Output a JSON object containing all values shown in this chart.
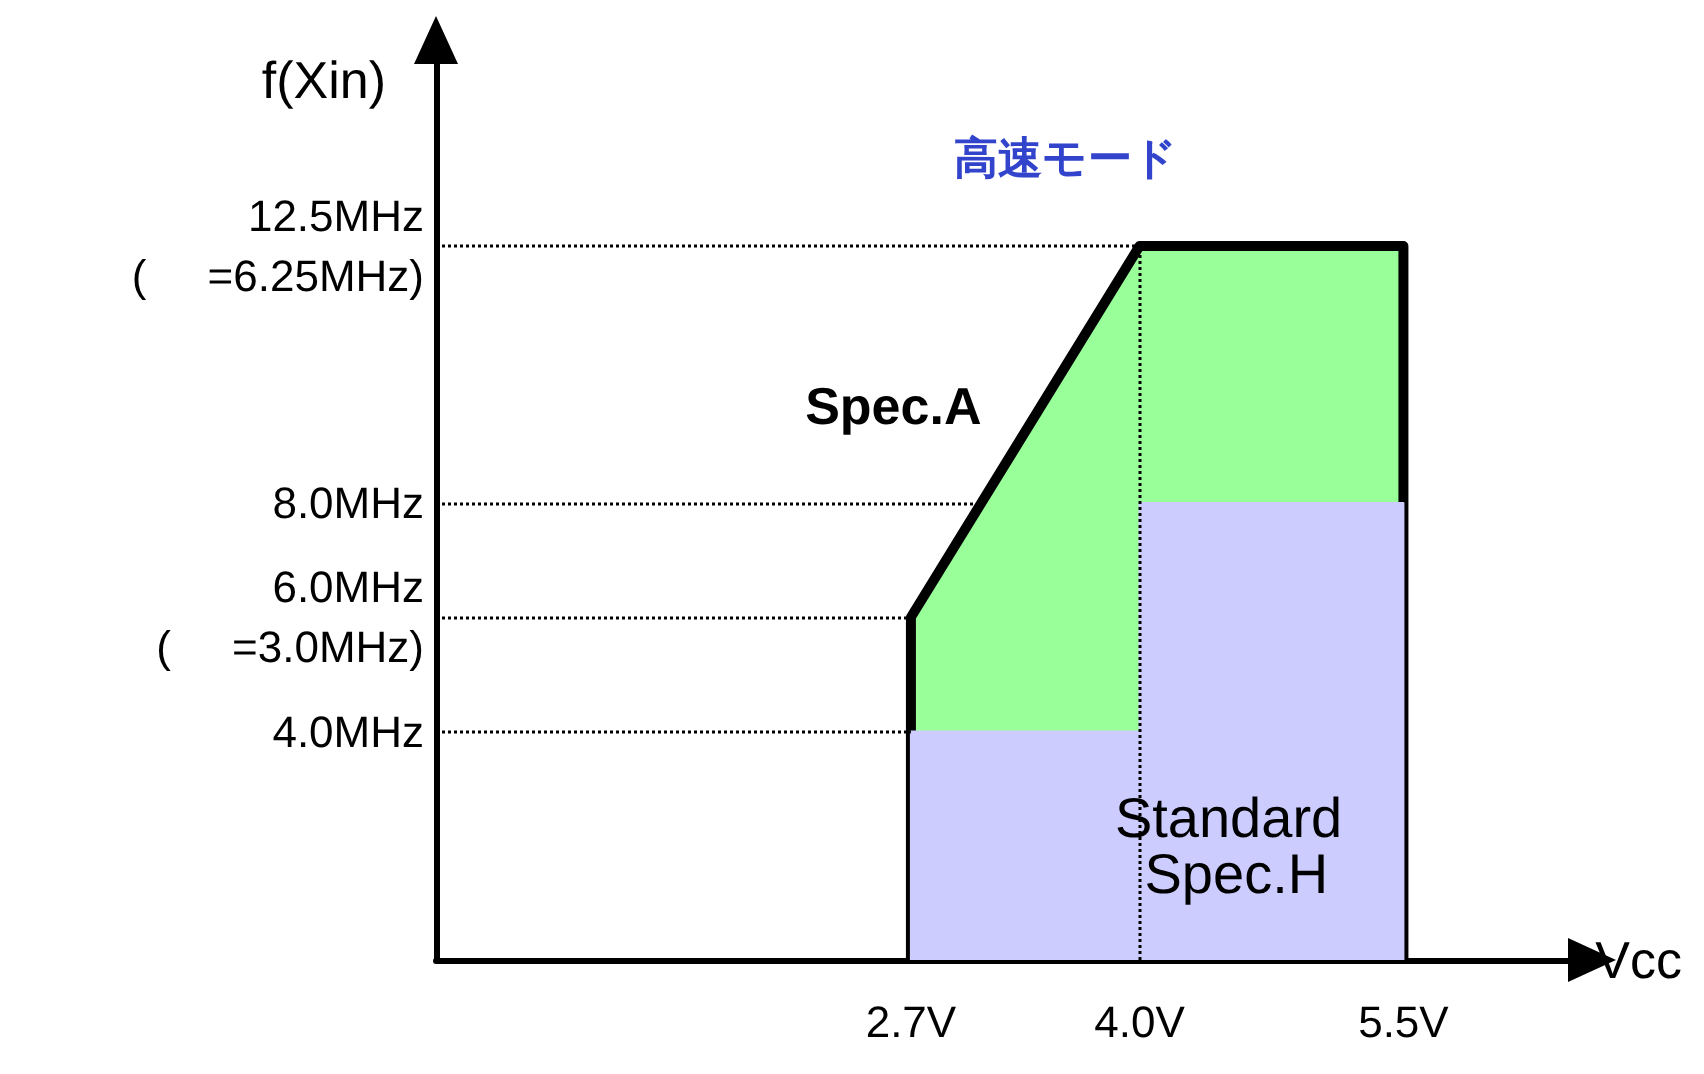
{
  "chart_data": {
    "type": "area",
    "title": "高速モード",
    "xlabel": "Vcc",
    "ylabel": "f(Xin)",
    "xlim": [
      0,
      6.5
    ],
    "ylim": [
      0,
      16
    ],
    "xticks": [
      {
        "value": 2.7,
        "label": "2.7V"
      },
      {
        "value": 4.0,
        "label": "4.0V"
      },
      {
        "value": 5.5,
        "label": "5.5V"
      }
    ],
    "yticks": [
      {
        "value": 4.0,
        "label": "4.0MHz"
      },
      {
        "value": 6.0,
        "label": "6.0MHz\n(     =3.0MHz)"
      },
      {
        "value": 8.0,
        "label": "8.0MHz"
      },
      {
        "value": 12.5,
        "label": "12.5MHz\n(     =6.25MHz)"
      }
    ],
    "series": [
      {
        "name": "Spec.A",
        "color": "#99ff99",
        "x": [
          2.7,
          2.7,
          4.0,
          5.5,
          5.5
        ],
        "values": [
          0,
          6.0,
          12.5,
          12.5,
          0
        ]
      },
      {
        "name": "Standard Spec.H",
        "color": "#ccccff",
        "x": [
          2.7,
          2.7,
          4.0,
          4.0,
          5.5,
          5.5
        ],
        "values": [
          0,
          4.0,
          4.0,
          8.0,
          8.0,
          0
        ]
      }
    ],
    "ref_lines": [
      {
        "axis": "y",
        "value": 12.5,
        "line_style": "dotted",
        "color": "#000000"
      },
      {
        "axis": "y",
        "value": 8.0,
        "line_style": "dotted",
        "color": "#000000"
      },
      {
        "axis": "y",
        "value": 6.0,
        "line_style": "dotted",
        "color": "#000000"
      },
      {
        "axis": "y",
        "value": 4.0,
        "line_style": "dotted",
        "color": "#000000"
      },
      {
        "axis": "x",
        "value": 4.0,
        "line_style": "dotted",
        "color": "#000000"
      }
    ],
    "grid": false,
    "legend": false
  }
}
